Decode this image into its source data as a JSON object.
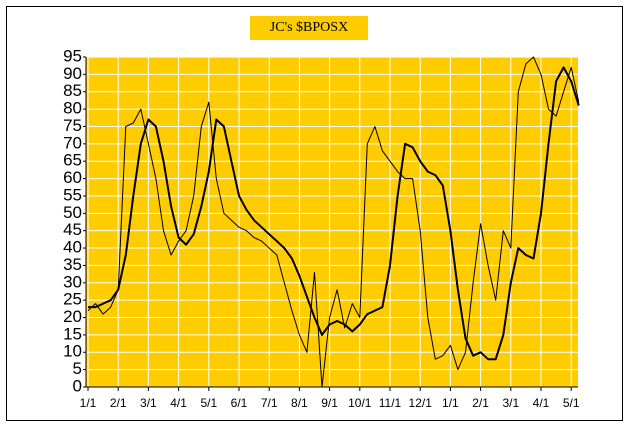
{
  "chart_data": {
    "type": "line",
    "title": "JC's $BPOSX",
    "categories": [
      "1/1",
      null,
      null,
      null,
      "2/1",
      null,
      null,
      null,
      "3/1",
      null,
      null,
      null,
      "4/1",
      null,
      null,
      null,
      "5/1",
      null,
      null,
      null,
      "6/1",
      null,
      null,
      null,
      "7/1",
      null,
      null,
      null,
      "8/1",
      null,
      null,
      null,
      "9/1",
      null,
      null,
      null,
      "10/1",
      null,
      null,
      null,
      "11/1",
      null,
      null,
      null,
      "12/1",
      null,
      null,
      null,
      "1/1",
      null,
      null,
      null,
      "2/1",
      null,
      null,
      null,
      "3/1",
      null,
      null,
      null,
      "4/1",
      null,
      null,
      null,
      "5/1",
      null
    ],
    "series": [
      {
        "color": "#000000",
        "width": 1,
        "values": [
          22,
          24,
          21,
          23,
          28,
          75,
          76,
          80,
          70,
          60,
          45,
          38,
          42,
          45,
          55,
          75,
          82,
          60,
          50,
          48,
          46,
          45,
          43,
          42,
          40,
          38,
          30,
          22,
          15,
          10,
          33,
          0,
          20,
          28,
          17,
          24,
          20,
          70,
          75,
          68,
          65,
          62,
          60,
          60,
          45,
          20,
          8,
          9,
          12,
          5,
          10,
          30,
          47,
          35,
          25,
          45,
          40,
          85,
          93,
          95,
          90,
          80,
          78,
          85,
          92,
          82
        ]
      },
      {
        "color": "#000000",
        "width": 2,
        "values": [
          23,
          23,
          24,
          25,
          28,
          38,
          55,
          70,
          77,
          75,
          65,
          52,
          43,
          41,
          44,
          52,
          62,
          77,
          75,
          65,
          55,
          51,
          48,
          46,
          44,
          42,
          40,
          37,
          32,
          26,
          20,
          15,
          18,
          19,
          18,
          16,
          18,
          21,
          22,
          23,
          35,
          55,
          70,
          69,
          65,
          62,
          61,
          58,
          45,
          28,
          14,
          9,
          10,
          8,
          8,
          15,
          30,
          40,
          38,
          37,
          50,
          70,
          88,
          92,
          88,
          81
        ]
      }
    ],
    "ylim": [
      0,
      95
    ],
    "yticks": [
      0,
      5,
      10,
      15,
      20,
      25,
      30,
      35,
      40,
      45,
      50,
      55,
      60,
      65,
      70,
      75,
      80,
      85,
      90,
      95
    ],
    "grid": true
  }
}
